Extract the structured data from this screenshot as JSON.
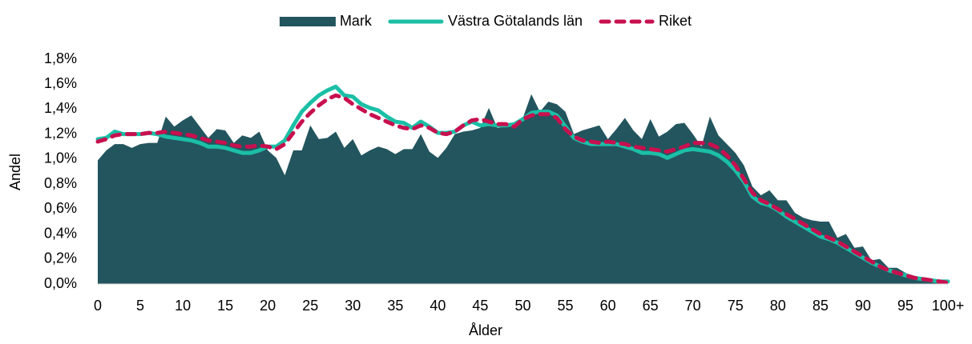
{
  "chart_data": {
    "type": "area-line",
    "x_label": "Ålder",
    "y_label": "Andel",
    "categories": [
      "0",
      null,
      null,
      null,
      null,
      "5",
      null,
      null,
      null,
      null,
      "10",
      null,
      null,
      null,
      null,
      "15",
      null,
      null,
      null,
      null,
      "20",
      null,
      null,
      null,
      null,
      "25",
      null,
      null,
      null,
      null,
      "30",
      null,
      null,
      null,
      null,
      "35",
      null,
      null,
      null,
      null,
      "40",
      null,
      null,
      null,
      null,
      "45",
      null,
      null,
      null,
      null,
      "50",
      null,
      null,
      null,
      null,
      "55",
      null,
      null,
      null,
      null,
      "60",
      null,
      null,
      null,
      null,
      "65",
      null,
      null,
      null,
      null,
      "70",
      null,
      null,
      null,
      null,
      "75",
      null,
      null,
      null,
      null,
      "80",
      null,
      null,
      null,
      null,
      "85",
      null,
      null,
      null,
      null,
      "90",
      null,
      null,
      null,
      null,
      "95",
      null,
      null,
      null,
      null,
      "100+"
    ],
    "ylim": [
      0,
      1.8
    ],
    "yticks": [
      {
        "value": 0,
        "label": "0,0%"
      },
      {
        "value": 0.2,
        "label": "0,2%"
      },
      {
        "value": 0.4,
        "label": "0,4%"
      },
      {
        "value": 0.6,
        "label": "0,6%"
      },
      {
        "value": 0.8,
        "label": "0,8%"
      },
      {
        "value": 1,
        "label": "1,0%"
      },
      {
        "value": 1.2,
        "label": "1,2%"
      },
      {
        "value": 1.4,
        "label": "1,4%"
      },
      {
        "value": 1.6,
        "label": "1,6%"
      },
      {
        "value": 1.8,
        "label": "1,8%"
      }
    ],
    "legend": "top",
    "series": [
      {
        "name": "Mark",
        "color": "#23555e",
        "kind": "area",
        "values": [
          0.99,
          1.07,
          1.12,
          1.12,
          1.09,
          1.12,
          1.13,
          1.13,
          1.34,
          1.26,
          1.31,
          1.35,
          1.26,
          1.17,
          1.24,
          1.23,
          1.13,
          1.19,
          1.17,
          1.22,
          1.07,
          1.01,
          0.87,
          1.07,
          1.07,
          1.27,
          1.16,
          1.17,
          1.22,
          1.09,
          1.16,
          1.03,
          1.07,
          1.1,
          1.08,
          1.04,
          1.08,
          1.08,
          1.2,
          1.06,
          1.01,
          1.09,
          1.2,
          1.22,
          1.23,
          1.25,
          1.41,
          1.25,
          1.26,
          1.28,
          1.33,
          1.52,
          1.38,
          1.46,
          1.44,
          1.38,
          1.2,
          1.23,
          1.25,
          1.27,
          1.16,
          1.24,
          1.33,
          1.23,
          1.16,
          1.32,
          1.18,
          1.22,
          1.28,
          1.29,
          1.2,
          1.1,
          1.34,
          1.19,
          1.12,
          1.05,
          0.95,
          0.78,
          0.71,
          0.75,
          0.67,
          0.67,
          0.57,
          0.53,
          0.51,
          0.5,
          0.5,
          0.37,
          0.4,
          0.29,
          0.3,
          0.19,
          0.2,
          0.13,
          0.13,
          0.09,
          0.06,
          0.04,
          0.03,
          0.02,
          0.02
        ]
      },
      {
        "name": "Västra Götalands län",
        "color": "#1bbfa6",
        "kind": "line",
        "values": [
          1.16,
          1.17,
          1.22,
          1.2,
          1.2,
          1.2,
          1.21,
          1.2,
          1.18,
          1.17,
          1.16,
          1.15,
          1.13,
          1.1,
          1.1,
          1.09,
          1.07,
          1.05,
          1.05,
          1.07,
          1.1,
          1.1,
          1.15,
          1.27,
          1.38,
          1.45,
          1.51,
          1.55,
          1.58,
          1.51,
          1.5,
          1.44,
          1.41,
          1.39,
          1.34,
          1.3,
          1.29,
          1.25,
          1.3,
          1.26,
          1.21,
          1.21,
          1.22,
          1.27,
          1.3,
          1.27,
          1.28,
          1.27,
          1.27,
          1.28,
          1.32,
          1.37,
          1.38,
          1.38,
          1.35,
          1.26,
          1.17,
          1.14,
          1.12,
          1.12,
          1.12,
          1.12,
          1.1,
          1.08,
          1.05,
          1.05,
          1.04,
          1.01,
          1.04,
          1.07,
          1.08,
          1.07,
          1.06,
          1.03,
          0.98,
          0.91,
          0.82,
          0.7,
          0.65,
          0.63,
          0.59,
          0.54,
          0.5,
          0.46,
          0.42,
          0.38,
          0.36,
          0.33,
          0.29,
          0.25,
          0.21,
          0.17,
          0.14,
          0.11,
          0.09,
          0.07,
          0.05,
          0.04,
          0.03,
          0.02,
          0.02
        ]
      },
      {
        "name": "Riket",
        "color": "#c8104f",
        "kind": "dashed",
        "values": [
          1.14,
          1.16,
          1.19,
          1.2,
          1.2,
          1.2,
          1.21,
          1.21,
          1.22,
          1.21,
          1.2,
          1.19,
          1.17,
          1.15,
          1.14,
          1.13,
          1.11,
          1.1,
          1.1,
          1.11,
          1.1,
          1.08,
          1.12,
          1.21,
          1.3,
          1.37,
          1.43,
          1.48,
          1.51,
          1.49,
          1.44,
          1.4,
          1.36,
          1.33,
          1.3,
          1.27,
          1.25,
          1.24,
          1.27,
          1.25,
          1.21,
          1.2,
          1.22,
          1.27,
          1.31,
          1.32,
          1.3,
          1.28,
          1.28,
          1.26,
          1.32,
          1.35,
          1.36,
          1.36,
          1.33,
          1.24,
          1.18,
          1.15,
          1.14,
          1.13,
          1.14,
          1.13,
          1.12,
          1.1,
          1.09,
          1.08,
          1.07,
          1.06,
          1.08,
          1.1,
          1.13,
          1.13,
          1.12,
          1.09,
          1.03,
          0.95,
          0.84,
          0.73,
          0.67,
          0.64,
          0.6,
          0.56,
          0.52,
          0.48,
          0.44,
          0.4,
          0.37,
          0.34,
          0.3,
          0.26,
          0.22,
          0.18,
          0.14,
          0.11,
          0.09,
          0.07,
          0.05,
          0.04,
          0.03,
          0.02,
          0.01
        ]
      }
    ]
  }
}
